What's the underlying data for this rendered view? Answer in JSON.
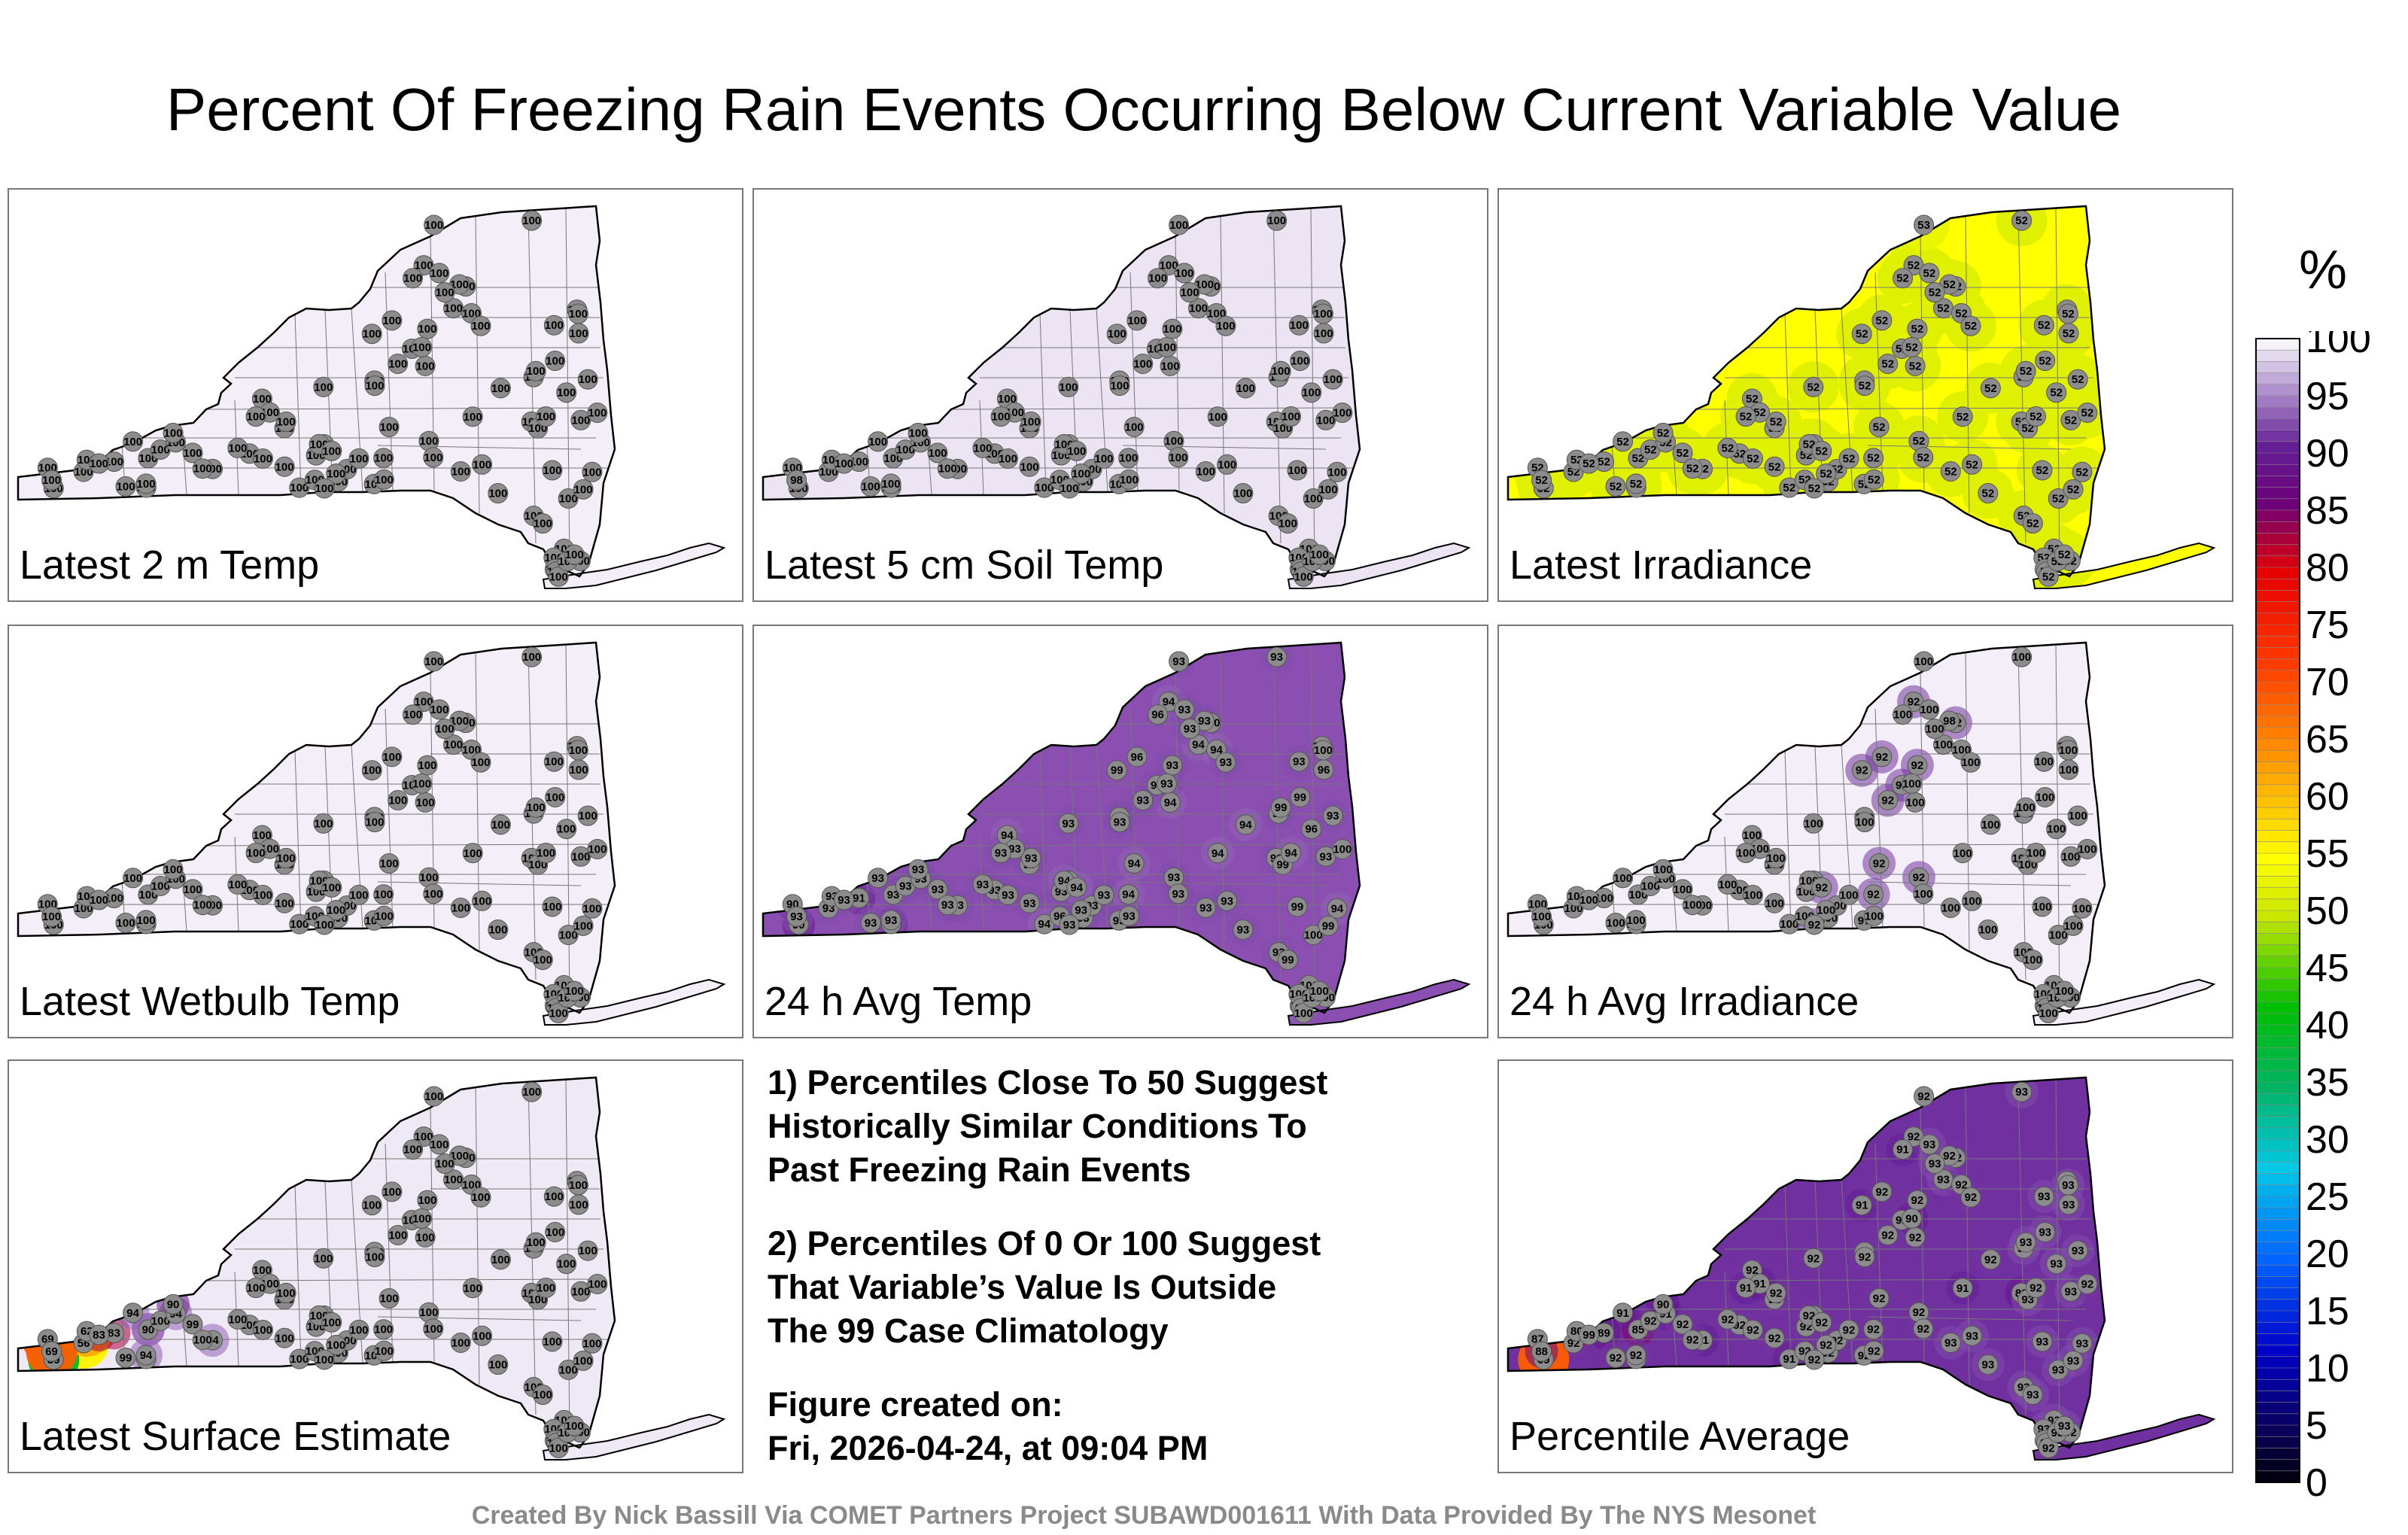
{
  "chart_data": {
    "type": "heatmap",
    "title": "Percent Of Freezing Rain Events Occurring Below Current Variable Value",
    "colorbar": {
      "unit": "%",
      "ticks": [
        "100",
        "95",
        "90",
        "85",
        "80",
        "75",
        "70",
        "65",
        "60",
        "55",
        "50",
        "45",
        "40",
        "35",
        "30",
        "25",
        "20",
        "15",
        "10",
        "5",
        "0"
      ],
      "range": [
        0,
        100
      ]
    },
    "panels": [
      {
        "label": "Latest 2 m Temp",
        "fill": "#f3eef7",
        "stations": [
          100,
          100,
          100,
          100,
          100,
          100,
          100,
          100,
          100,
          100,
          100,
          100,
          100,
          100,
          100,
          100,
          100,
          100,
          100,
          100,
          100,
          100,
          100,
          100,
          100,
          100,
          100,
          100,
          100,
          100,
          100,
          100,
          100,
          100,
          100,
          100,
          100,
          100,
          100,
          100,
          100,
          100,
          100,
          100,
          100,
          100,
          100,
          100,
          100,
          100,
          100,
          100,
          100,
          100,
          100,
          100,
          100,
          100,
          100,
          100,
          100,
          100,
          100,
          100,
          100,
          100,
          100,
          100,
          100,
          100,
          100,
          100,
          100,
          100,
          100,
          100,
          100,
          100,
          100,
          100,
          100,
          100,
          100,
          100,
          100,
          100,
          100,
          100,
          100,
          100,
          100,
          100,
          100,
          100,
          100,
          100,
          100,
          100
        ]
      },
      {
        "label": "Latest 5 cm Soil Temp",
        "fill": "#ece4f3",
        "stations": [
          100,
          100,
          100,
          100,
          100,
          100,
          100,
          100,
          98,
          100,
          100,
          100,
          100,
          100,
          100,
          100,
          100,
          100,
          100,
          100,
          100,
          100,
          100,
          100,
          100,
          100,
          100,
          100,
          100,
          100,
          100,
          100,
          100,
          100,
          100,
          100,
          100,
          100,
          100,
          100,
          100,
          100,
          100,
          100,
          100,
          100,
          100,
          100,
          100,
          100,
          100,
          100,
          100,
          100,
          100,
          100,
          100,
          100,
          100,
          100,
          100,
          100,
          100,
          100,
          100,
          100,
          100,
          100,
          100,
          100,
          100,
          100,
          100,
          100,
          100,
          100,
          100,
          100,
          100,
          100,
          100,
          100,
          100,
          100,
          100,
          100,
          100,
          100,
          100,
          100,
          100,
          100,
          100,
          100,
          100,
          100,
          100,
          100
        ]
      },
      {
        "label": "Latest Irradiance",
        "fill": "#ffff00",
        "stations": [
          52,
          52,
          52,
          52,
          52,
          52,
          52,
          52,
          52,
          52,
          52,
          52,
          52,
          52,
          52,
          52,
          52,
          52,
          52,
          52,
          52,
          52,
          52,
          52,
          52,
          52,
          52,
          52,
          52,
          52,
          52,
          52,
          52,
          52,
          52,
          52,
          52,
          52,
          52,
          52,
          52,
          52,
          52,
          52,
          52,
          52,
          52,
          52,
          52,
          52,
          52,
          52,
          52,
          52,
          52,
          52,
          52,
          52,
          52,
          52,
          52,
          52,
          52,
          52,
          53,
          52,
          52,
          52,
          52,
          52,
          52,
          52,
          52,
          52,
          52,
          52,
          52,
          52,
          52,
          52,
          52,
          52,
          52,
          52,
          52,
          52,
          52,
          52,
          52,
          52,
          52,
          52,
          52,
          52,
          52,
          52,
          52,
          52
        ]
      },
      {
        "label": "Latest Wetbulb Temp",
        "fill": "#f3eef7",
        "stations": [
          100,
          100,
          100,
          100,
          100,
          100,
          100,
          100,
          100,
          100,
          100,
          100,
          100,
          100,
          100,
          100,
          100,
          100,
          100,
          100,
          100,
          100,
          100,
          100,
          100,
          100,
          100,
          100,
          100,
          100,
          100,
          100,
          100,
          100,
          100,
          100,
          100,
          100,
          100,
          100,
          100,
          100,
          100,
          100,
          100,
          100,
          100,
          100,
          100,
          100,
          100,
          100,
          100,
          100,
          100,
          100,
          100,
          100,
          100,
          100,
          100,
          100,
          100,
          100,
          100,
          100,
          100,
          100,
          100,
          100,
          100,
          100,
          100,
          100,
          100,
          100,
          100,
          100,
          100,
          100,
          100,
          100,
          100,
          100,
          100,
          100,
          100,
          100,
          100,
          100,
          100,
          100,
          100,
          100,
          100,
          100,
          100,
          100
        ]
      },
      {
        "label": "24 h Avg Temp",
        "fill": "#8a4fb0",
        "stations": [
          91,
          90,
          93,
          93,
          91,
          90,
          93,
          93,
          93,
          93,
          93,
          93,
          93,
          93,
          93,
          93,
          93,
          93,
          93,
          93,
          93,
          93,
          93,
          94,
          93,
          93,
          93,
          93,
          93,
          94,
          93,
          93,
          93,
          93,
          94,
          93,
          96,
          93,
          93,
          94,
          93,
          93,
          94,
          94,
          94,
          93,
          93,
          93,
          100,
          94,
          93,
          99,
          96,
          93,
          93,
          93,
          96,
          93,
          93,
          94,
          93,
          94,
          94,
          93,
          93,
          93,
          93,
          94,
          93,
          93,
          93,
          99,
          93,
          93,
          96,
          99,
          100,
          99,
          99,
          93,
          93,
          93,
          99,
          96,
          94,
          99,
          100,
          100,
          100,
          94,
          100,
          100,
          100,
          100,
          94,
          100,
          100,
          100
        ]
      },
      {
        "label": "24 h Avg Irradiance",
        "fill": "#f3eef7",
        "stations": [
          100,
          100,
          100,
          100,
          100,
          100,
          100,
          100,
          100,
          100,
          100,
          100,
          100,
          100,
          100,
          100,
          100,
          100,
          100,
          100,
          100,
          100,
          100,
          100,
          100,
          100,
          100,
          100,
          100,
          100,
          100,
          100,
          100,
          100,
          100,
          100,
          100,
          100,
          100,
          100,
          92,
          92,
          92,
          92,
          92,
          92,
          97,
          92,
          92,
          92,
          92,
          92,
          92,
          98,
          100,
          100,
          100,
          100,
          100,
          100,
          100,
          100,
          100,
          100,
          100,
          100,
          100,
          100,
          100,
          100,
          100,
          100,
          100,
          100,
          100,
          100,
          100,
          100,
          100,
          100,
          100,
          100,
          100,
          100,
          100,
          100,
          100,
          100,
          100,
          100,
          100,
          100,
          100,
          100,
          100,
          100,
          100,
          100
        ]
      },
      {
        "label": "Latest Surface Estimate",
        "fill": "#efe8f5",
        "stations": [
          99,
          69,
          90,
          56,
          83,
          39,
          62,
          83,
          69,
          100,
          99,
          94,
          94,
          99,
          94,
          94,
          90,
          100,
          100,
          100,
          100,
          100,
          100,
          100,
          100,
          100,
          100,
          100,
          100,
          100,
          100,
          100,
          100,
          100,
          100,
          100,
          100,
          100,
          100,
          100,
          100,
          100,
          100,
          100,
          100,
          100,
          100,
          100,
          100,
          100,
          100,
          100,
          100,
          100,
          100,
          100,
          100,
          100,
          100,
          100,
          100,
          100,
          100,
          100,
          100,
          100,
          100,
          100,
          100,
          100,
          100,
          100,
          100,
          100,
          100,
          100,
          100,
          100,
          100,
          100,
          100,
          100,
          100,
          100,
          100,
          100,
          100,
          100,
          100,
          100,
          100,
          100,
          100,
          100,
          100,
          100,
          100,
          100
        ]
      },
      {
        "label": "Percentile Average",
        "fill": "#7030a0",
        "stations": [
          92,
          87,
          85,
          92,
          89,
          69,
          80,
          99,
          88,
          92,
          92,
          92,
          91,
          92,
          91,
          91,
          90,
          92,
          92,
          92,
          92,
          92,
          92,
          92,
          92,
          92,
          92,
          92,
          92,
          91,
          91,
          91,
          92,
          92,
          92,
          92,
          92,
          92,
          92,
          92,
          92,
          92,
          92,
          92,
          92,
          92,
          92,
          92,
          92,
          92,
          92,
          91,
          92,
          92,
          92,
          93,
          91,
          90,
          89,
          91,
          93,
          92,
          93,
          92,
          92,
          93,
          93,
          92,
          93,
          92,
          93,
          93,
          93,
          93,
          93,
          93,
          93,
          93,
          93,
          93,
          93,
          93,
          93,
          93,
          93,
          93,
          93,
          92,
          93,
          92,
          93,
          92,
          92,
          93,
          92,
          92,
          93,
          93
        ]
      }
    ]
  },
  "notes": {
    "note1": "1) Percentiles Close To 50 Suggest\nHistorically Similar Conditions To\nPast Freezing Rain Events",
    "note2": "2) Percentiles Of 0 Or 100 Suggest\nThat Variable’s Value Is Outside\nThe 99 Case Climatology",
    "created_label": "Figure created on:",
    "created_date": "Fri, 2026-04-24, at 09:04 PM"
  },
  "credit": "Created By Nick Bassill Via COMET Partners Project SUBAWD001611 With Data Provided By The NYS Mesonet",
  "colors": {
    "station_marker": "#8c8c8c",
    "state_outline": "#000000",
    "county_lines": "#777777"
  }
}
